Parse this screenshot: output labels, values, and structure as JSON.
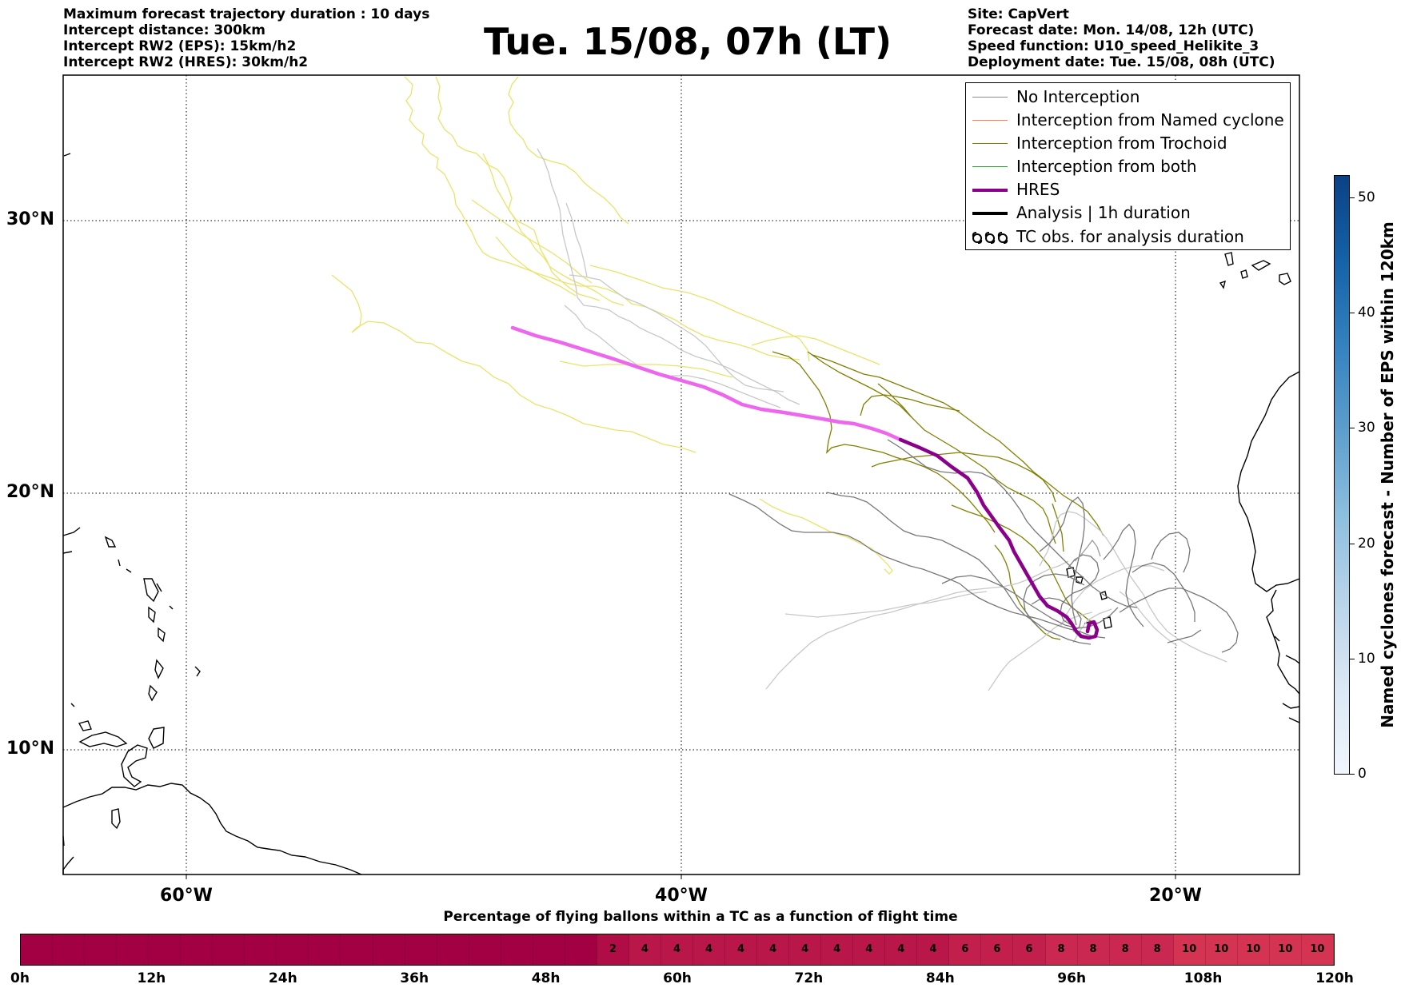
{
  "header": {
    "left": [
      "Maximum forecast trajectory duration : 10 days",
      "Intercept distance: 300km",
      "Intercept RW2 (EPS):  15km/h2",
      "Intercept RW2 (HRES): 30km/h2"
    ],
    "title": "Tue. 15/08, 07h (LT)",
    "right": [
      "Site: CapVert",
      "Forecast date: Mon. 14/08, 12h (UTC)",
      "Speed function: U10_speed_Helikite_3",
      "Deployment date: Tue. 15/08, 08h (UTC)"
    ]
  },
  "map": {
    "lat_ticks": [
      "30°N",
      "20°N",
      "10°N"
    ],
    "lon_ticks": [
      "60°W",
      "40°W",
      "20°W"
    ],
    "colors": {
      "no_interception": "#8c8c8c",
      "named_cyclone": "#ff7f50",
      "trochoid": "#808000",
      "both": "#2ca02c",
      "hres": "#8b008b",
      "hres_forecast": "#ee66ee",
      "eps_yellow": "#e8e46a"
    }
  },
  "legend": {
    "items": [
      {
        "label": "No Interception",
        "color": "#8c8c8c",
        "style": "thin"
      },
      {
        "label": "Interception from Named cyclone",
        "color": "#ff7f50",
        "style": "thin"
      },
      {
        "label": "Interception from Trochoid",
        "color": "#808000",
        "style": "thin"
      },
      {
        "label": "Interception from both",
        "color": "#2ca02c",
        "style": "thin"
      },
      {
        "label": "HRES",
        "color": "#8b008b",
        "style": "thick"
      },
      {
        "label": "Analysis | 1h duration",
        "color": "#000000",
        "style": "thick"
      },
      {
        "label": "TC obs. for analysis duration",
        "color": "#000000",
        "style": "symbol",
        "icon": "tc-symbols-icon"
      }
    ]
  },
  "colorbar_bottom": {
    "title": "Percentage of flying ballons within a TC as a function of flight time",
    "segment_labels": [
      "",
      "",
      "",
      "",
      "",
      "",
      "",
      "",
      "",
      "",
      "",
      "",
      "",
      "",
      "",
      "",
      "",
      "",
      "2",
      "4",
      "4",
      "4",
      "4",
      "4",
      "4",
      "4",
      "4",
      "4",
      "4",
      "6",
      "6",
      "6",
      "8",
      "8",
      "8",
      "8",
      "10",
      "10",
      "10",
      "10",
      "10"
    ],
    "time_ticks": [
      "0h",
      "12h",
      "24h",
      "36h",
      "48h",
      "60h",
      "72h",
      "84h",
      "96h",
      "108h",
      "120h"
    ]
  },
  "colorbar_right": {
    "label": "Named cyclones forecast - Number of EPS within 120km",
    "ticks": [
      "0",
      "10",
      "20",
      "30",
      "40",
      "50"
    ],
    "max": 52
  }
}
